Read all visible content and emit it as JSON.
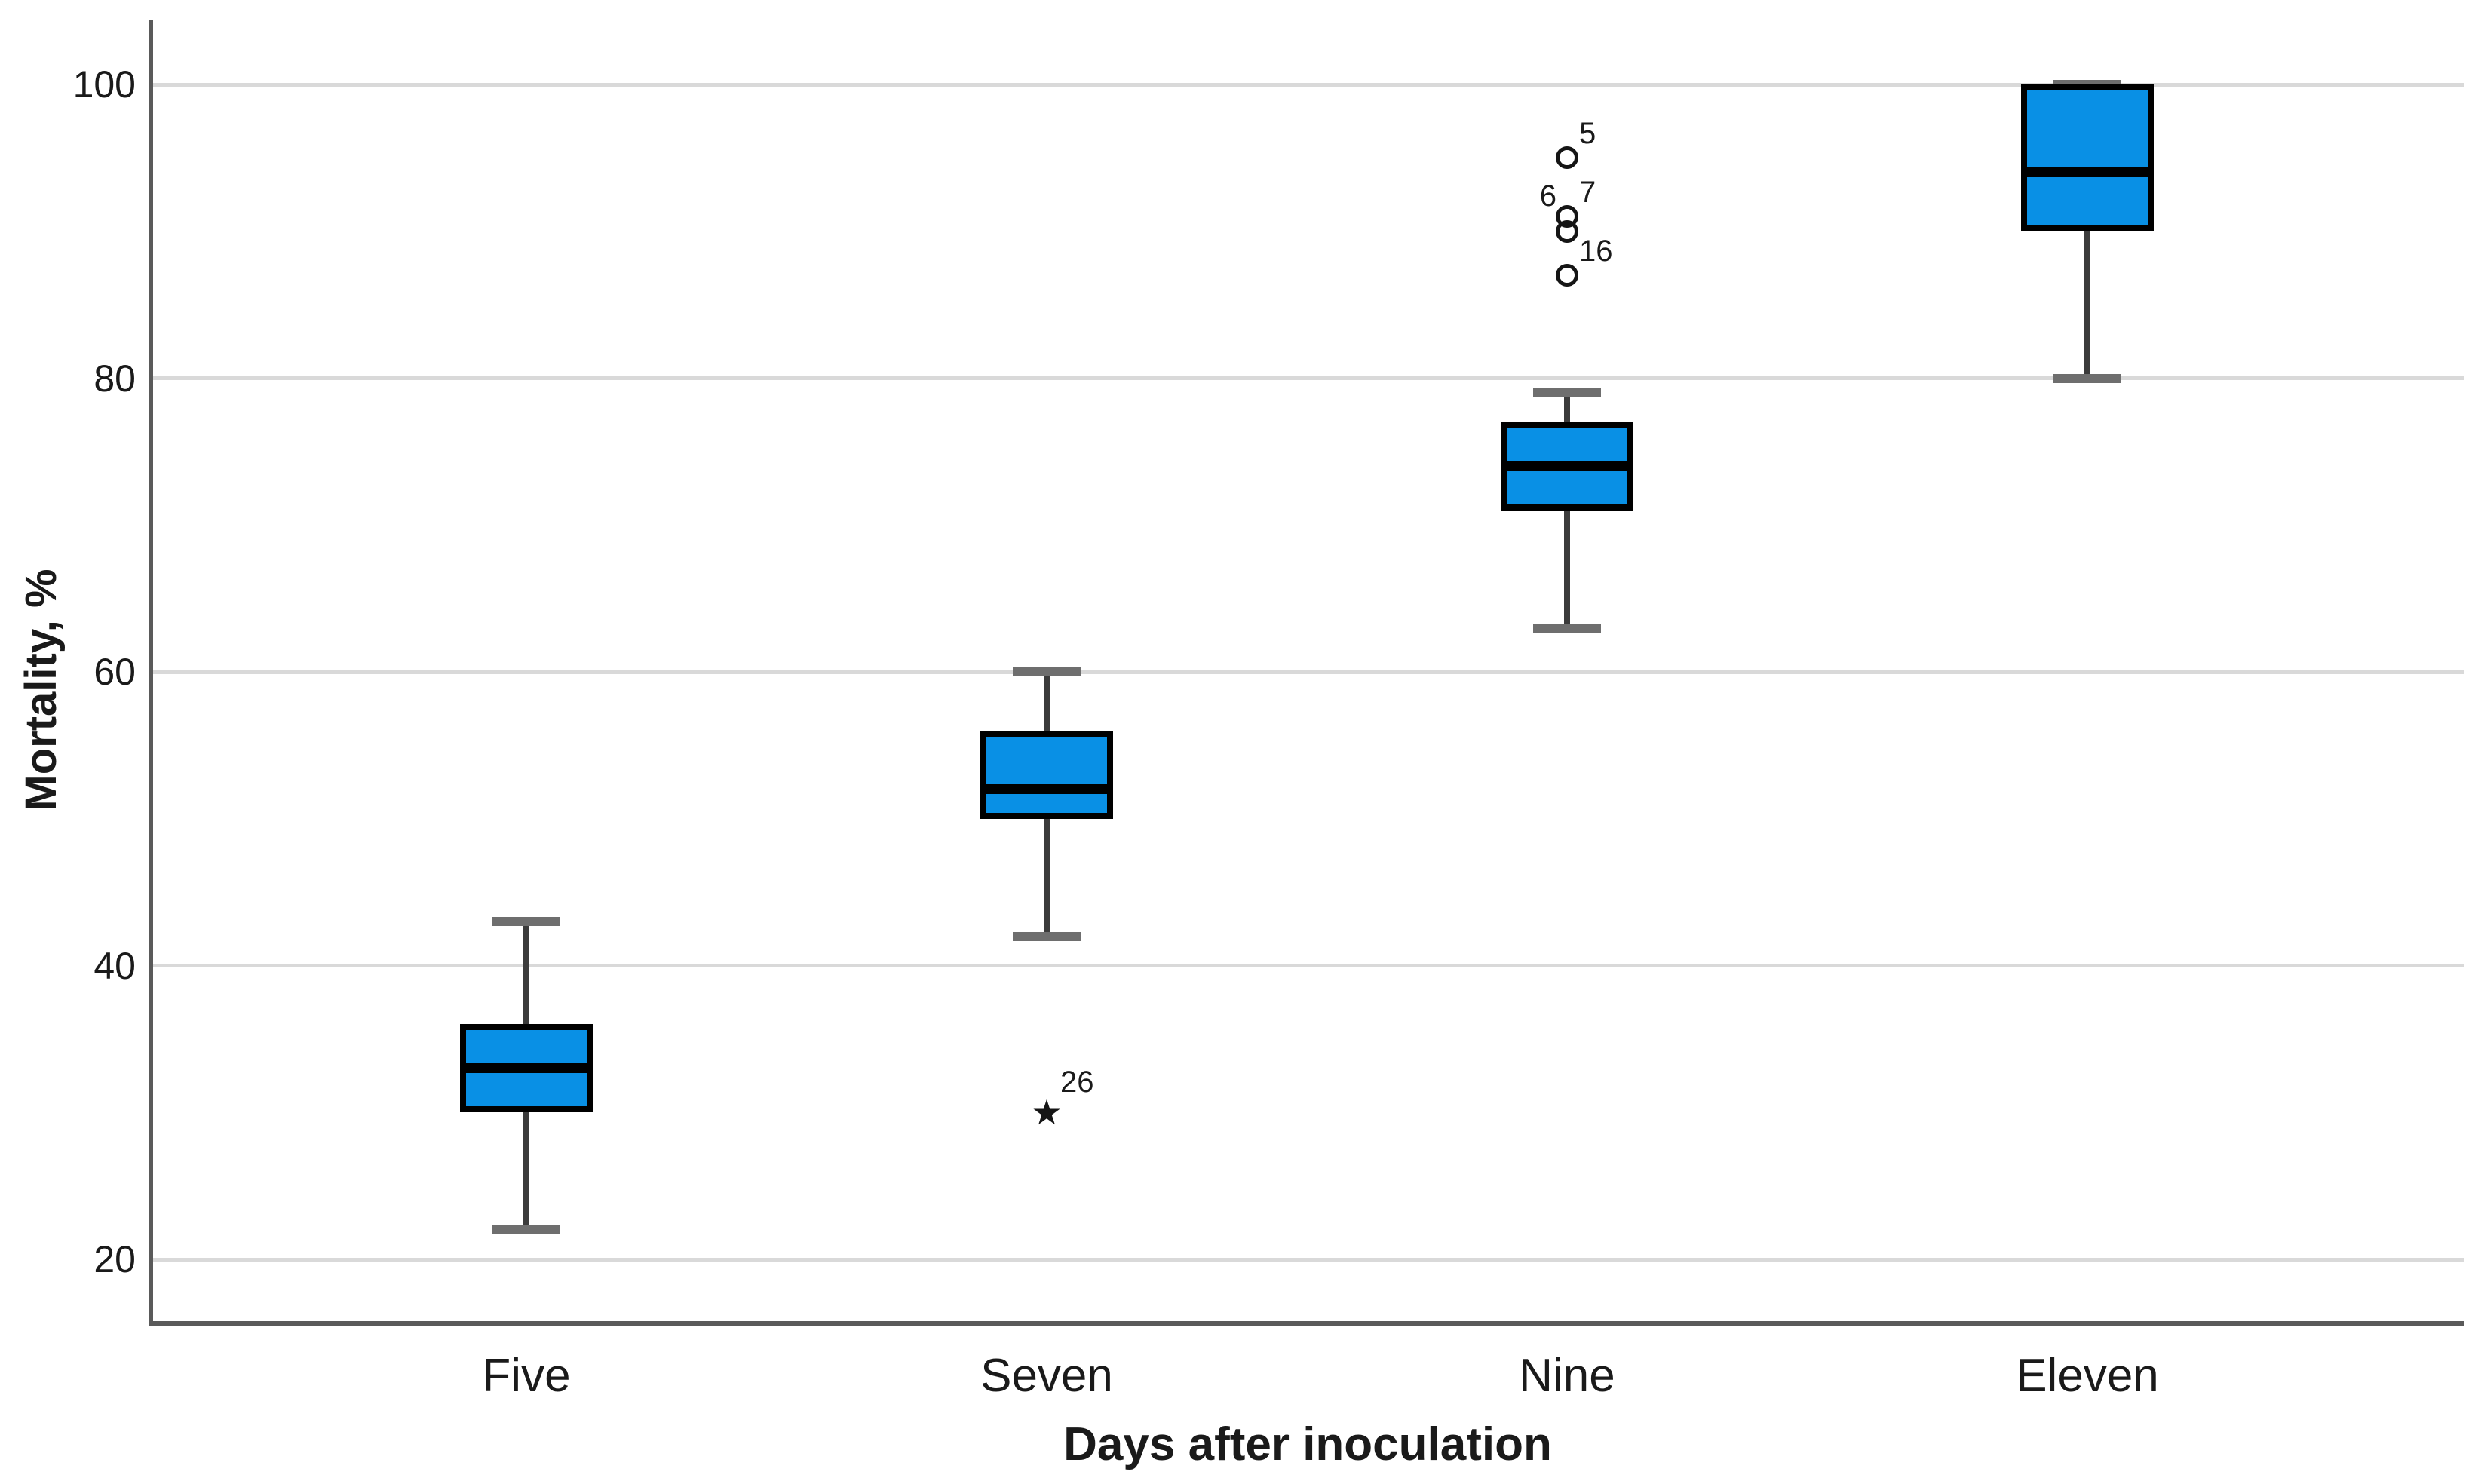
{
  "chart_data": {
    "type": "box",
    "title": "",
    "xlabel": "Days after inoculation",
    "ylabel": "Mortality, %",
    "ylim": [
      15,
      105
    ],
    "yticks": [
      20,
      40,
      60,
      80,
      100
    ],
    "grid": true,
    "legend": "none",
    "categories": [
      "Five",
      "Seven",
      "Nine",
      "Eleven"
    ],
    "boxes": [
      {
        "category": "Five",
        "whisker_low": 22,
        "q1": 30,
        "median": 33,
        "q3": 36,
        "whisker_high": 43,
        "outliers": [],
        "extreme_outliers": []
      },
      {
        "category": "Seven",
        "whisker_low": 42,
        "q1": 50,
        "median": 52,
        "q3": 56,
        "whisker_high": 60,
        "outliers": [],
        "extreme_outliers": [
          {
            "case_label": "26",
            "value": 30,
            "side": "right"
          }
        ]
      },
      {
        "category": "Nine",
        "whisker_low": 63,
        "q1": 71,
        "median": 74,
        "q3": 77,
        "whisker_high": 79,
        "outliers": [
          {
            "case_label": "5",
            "value": 95,
            "side": "right"
          },
          {
            "case_label": "7",
            "value": 91,
            "side": "right"
          },
          {
            "case_label": "6",
            "value": 90,
            "side": "left"
          },
          {
            "case_label": "16",
            "value": 87,
            "side": "right"
          }
        ],
        "extreme_outliers": []
      },
      {
        "category": "Eleven",
        "whisker_low": 80,
        "q1": 90,
        "median": 94,
        "q3": 100,
        "whisker_high": 100,
        "outliers": [],
        "extreme_outliers": []
      }
    ],
    "colors": {
      "box_fill": "#0990E5",
      "box_border": "#000000",
      "median": "#000000",
      "whisker": "#3B3B3B",
      "whisker_cap": "#6E6E6E",
      "gridline": "#D9D9D9",
      "axis": "#5A5A5A",
      "text": "#1A1A1A"
    },
    "marker_glyphs": {
      "outlier": "circle",
      "extreme_outlier": "star"
    }
  }
}
